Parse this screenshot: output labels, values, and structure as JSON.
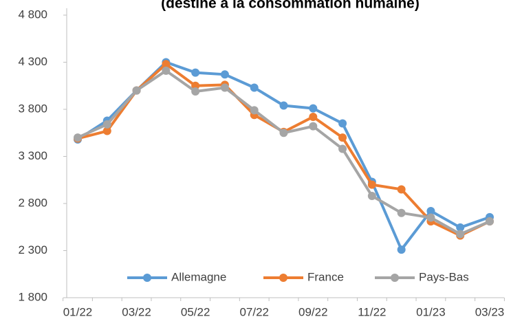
{
  "chart_data": {
    "type": "line",
    "title": "(destiné à la consommation humaine)",
    "categories": [
      "01/22",
      null,
      "03/22",
      null,
      "05/22",
      null,
      "07/22",
      null,
      "09/22",
      null,
      "11/22",
      null,
      "01/23",
      null,
      "03/23"
    ],
    "series": [
      {
        "name": "Allemagne",
        "color": "#5b9bd5",
        "values": [
          3480,
          3680,
          4000,
          4300,
          4190,
          4170,
          4030,
          3840,
          3810,
          3650,
          3030,
          2310,
          2720,
          2545,
          2655
        ]
      },
      {
        "name": "France",
        "color": "#ed7d31",
        "values": [
          3490,
          3570,
          4000,
          4280,
          4050,
          4060,
          3740,
          3560,
          3720,
          3500,
          3000,
          2950,
          2610,
          2460,
          2610
        ]
      },
      {
        "name": "Pays-Bas",
        "color": "#a5a5a5",
        "values": [
          3500,
          3640,
          4000,
          4210,
          3990,
          4030,
          3790,
          3550,
          3620,
          3380,
          2880,
          2700,
          2650,
          2475,
          2610
        ]
      }
    ],
    "ylim": [
      1800,
      4800
    ],
    "yticks": [
      {
        "value": 1800,
        "label": "1 800"
      },
      {
        "value": 2300,
        "label": "2 300"
      },
      {
        "value": 2800,
        "label": "2 800"
      },
      {
        "value": 3300,
        "label": "3 300"
      },
      {
        "value": 3800,
        "label": "3 800"
      },
      {
        "value": 4300,
        "label": "4 300"
      },
      {
        "value": 4800,
        "label": "4 800"
      }
    ],
    "legend": "bottom"
  }
}
